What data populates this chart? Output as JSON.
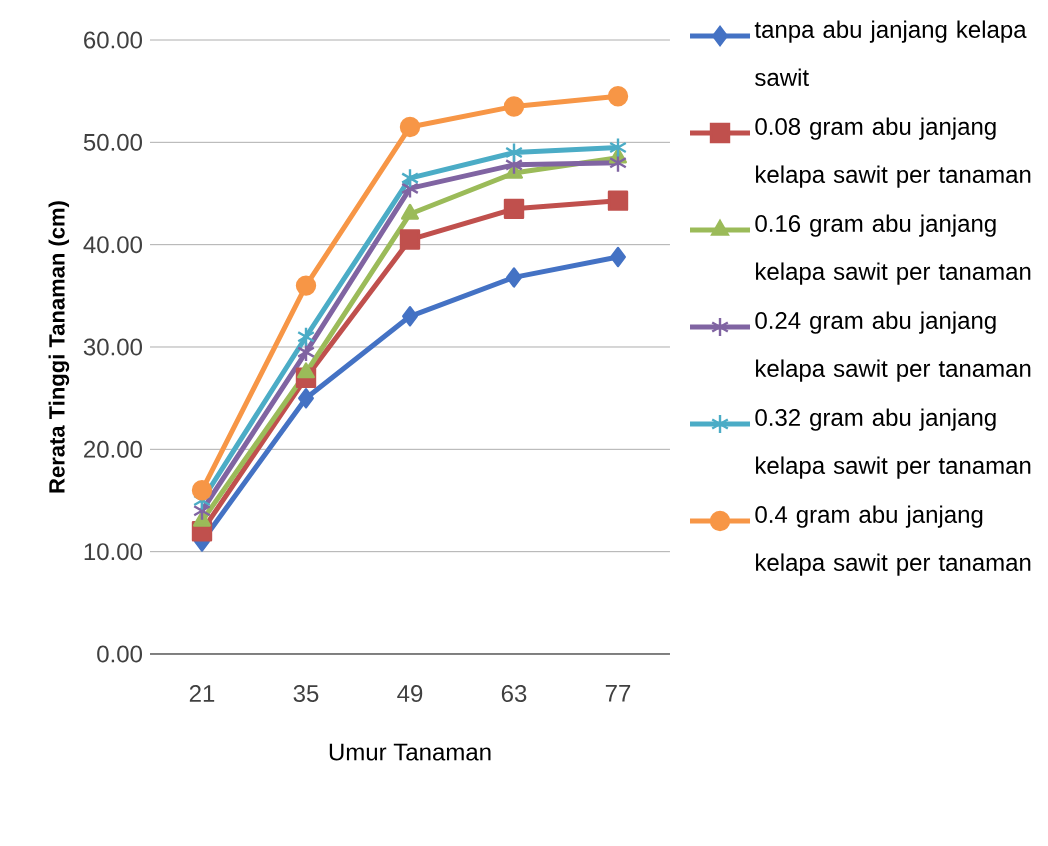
{
  "chart_data": {
    "type": "line",
    "xlabel": "Umur Tanaman",
    "ylabel": "Rerata Tinggi Tanaman (cm)",
    "categories": [
      "21",
      "35",
      "49",
      "63",
      "77"
    ],
    "series": [
      {
        "name": "tanpa abu janjang kelapa sawit",
        "color": "#4472c4",
        "marker": "diamond",
        "values": [
          11,
          25,
          33,
          36.8,
          38.8
        ]
      },
      {
        "name": "0.08 gram abu janjang kelapa sawit per tanaman",
        "color": "#c0504d",
        "marker": "square",
        "values": [
          12,
          27,
          40.5,
          43.5,
          44.3
        ]
      },
      {
        "name": "0.16 gram abu janjang kelapa sawit per tanaman",
        "color": "#9bbb59",
        "marker": "triangle",
        "values": [
          13,
          27.5,
          43,
          47,
          48.5
        ]
      },
      {
        "name": "0.24 gram abu janjang kelapa sawit per tanaman",
        "color": "#8064a2",
        "marker": "cross",
        "values": [
          14,
          29.5,
          45.5,
          47.8,
          48
        ]
      },
      {
        "name": "0.32 gram abu janjang kelapa sawit per tanaman",
        "color": "#4bacc6",
        "marker": "cross",
        "values": [
          15,
          31,
          46.5,
          49,
          49.5
        ]
      },
      {
        "name": "0.4 gram abu janjang kelapa sawit per tanaman",
        "color": "#f79646",
        "marker": "circle",
        "values": [
          16,
          36,
          51.5,
          53.5,
          54.5
        ]
      }
    ],
    "ylim": [
      0,
      60
    ],
    "yticks": [
      {
        "value": 0,
        "label": "0.00"
      },
      {
        "value": 10,
        "label": "10.00"
      },
      {
        "value": 20,
        "label": "20.00"
      },
      {
        "value": 30,
        "label": "30.00"
      },
      {
        "value": 40,
        "label": "40.00"
      },
      {
        "value": 50,
        "label": "50.00"
      },
      {
        "value": 60,
        "label": "60.00"
      }
    ],
    "grid": "y",
    "legend": "right",
    "line_style": "solid"
  }
}
